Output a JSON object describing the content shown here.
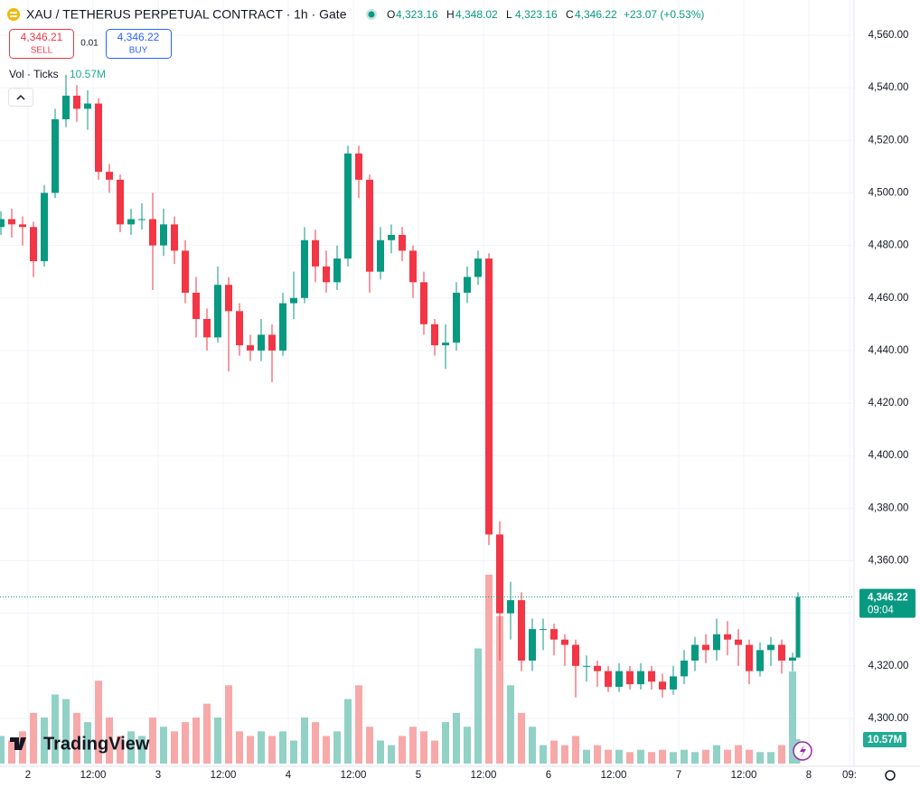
{
  "header": {
    "symbol": "XAU / TETHERUS PERPETUAL CONTRACT · 1h · Gate",
    "ohlc": [
      {
        "key": "O",
        "value": "4,323.16"
      },
      {
        "key": "H",
        "value": "4,348.02"
      },
      {
        "key": "L",
        "value": "4,323.16"
      },
      {
        "key": "C",
        "value": "4,346.22"
      }
    ],
    "change": "+23.07 (+0.53%)",
    "sell_price": "4,346.21",
    "sell_label": "SELL",
    "spread": "0.01",
    "buy_price": "4,346.22",
    "buy_label": "BUY",
    "volume_label": "Vol · Ticks",
    "volume_value": "10.57M"
  },
  "watermark": "TradingView",
  "price_tag": {
    "price": "4,346.22",
    "countdown": "09:04"
  },
  "volume_tag": "10.57M",
  "chart_data": {
    "type": "candlestick",
    "up_color": "#089981",
    "down_color": "#f23645",
    "volume_up_color": "#92d1c6",
    "volume_down_color": "#f7a9a9",
    "x": [
      0,
      2,
      4,
      6,
      8,
      10,
      12,
      14,
      16,
      18,
      20,
      22,
      24,
      26,
      28,
      30,
      32,
      34,
      36,
      38,
      40,
      42,
      44,
      46,
      48,
      50,
      52,
      54,
      56,
      58,
      60,
      62,
      64,
      66,
      68,
      70,
      72,
      74,
      76,
      78,
      80,
      82,
      84,
      86,
      88,
      90,
      92,
      94,
      96,
      98,
      100,
      102,
      104,
      106,
      108,
      110,
      112,
      114,
      116,
      118,
      120,
      122,
      124,
      126,
      128,
      130,
      132,
      134,
      136,
      138,
      140,
      142,
      144,
      146,
      147
    ],
    "open": [
      4487,
      4490,
      4488,
      4487,
      4474,
      4500,
      4528,
      4537,
      4532,
      4534,
      4508,
      4505,
      4488,
      4490,
      4490,
      4480,
      4488,
      4478,
      4462,
      4452,
      4445,
      4465,
      4455,
      4442,
      4440,
      4446,
      4440,
      4458,
      4460,
      4482,
      4472,
      4466,
      4475,
      4515,
      4505,
      4470,
      4482,
      4484,
      4478,
      4466,
      4450,
      4442,
      4443,
      4462,
      4468,
      4475,
      4370,
      4340,
      4345,
      4322,
      4334,
      4334,
      4330,
      4328,
      4320,
      4320,
      4318,
      4312,
      4318,
      4313,
      4318,
      4314,
      4311,
      4316,
      4322,
      4328,
      4326,
      4332,
      4330,
      4328,
      4318,
      4326,
      4328,
      4322,
      4323.16
    ],
    "high": [
      4493,
      4494,
      4491,
      4489,
      4503,
      4532,
      4545,
      4541,
      4539,
      4536,
      4511,
      4507,
      4494,
      4496,
      4500,
      4494,
      4491,
      4482,
      4468,
      4456,
      4472,
      4468,
      4458,
      4446,
      4452,
      4450,
      4462,
      4470,
      4487,
      4486,
      4478,
      4480,
      4518,
      4518,
      4507,
      4487,
      4488,
      4487,
      4480,
      4470,
      4452,
      4450,
      4466,
      4472,
      4478,
      4477,
      4375,
      4352,
      4348,
      4338,
      4338,
      4336,
      4332,
      4330,
      4324,
      4322,
      4320,
      4321,
      4320,
      4321,
      4320,
      4317,
      4320,
      4326,
      4331,
      4332,
      4338,
      4337,
      4334,
      4330,
      4329,
      4331,
      4330,
      4325,
      4348.02
    ],
    "low": [
      4484,
      4483,
      4480,
      4468,
      4472,
      4498,
      4525,
      4527,
      4524,
      4505,
      4500,
      4485,
      4484,
      4486,
      4463,
      4476,
      4473,
      4458,
      4445,
      4440,
      4443,
      4432,
      4438,
      4436,
      4436,
      4428,
      4438,
      4452,
      4458,
      4466,
      4462,
      4463,
      4472,
      4498,
      4462,
      4467,
      4477,
      4474,
      4460,
      4446,
      4438,
      4433,
      4440,
      4458,
      4465,
      4366,
      4322,
      4330,
      4318,
      4318,
      4326,
      4324,
      4320,
      4308,
      4314,
      4312,
      4310,
      4310,
      4311,
      4311,
      4311,
      4308,
      4309,
      4313,
      4318,
      4321,
      4322,
      4324,
      4320,
      4313,
      4316,
      4320,
      4317,
      4318,
      4323.16
    ],
    "close": [
      4490,
      4488,
      4487,
      4474,
      4500,
      4528,
      4537,
      4532,
      4534,
      4508,
      4505,
      4488,
      4490,
      4490,
      4480,
      4488,
      4478,
      4462,
      4452,
      4445,
      4465,
      4455,
      4442,
      4440,
      4446,
      4440,
      4458,
      4460,
      4482,
      4472,
      4466,
      4475,
      4515,
      4505,
      4470,
      4482,
      4484,
      4478,
      4466,
      4450,
      4442,
      4443,
      4462,
      4468,
      4475,
      4370,
      4340,
      4345,
      4322,
      4334,
      4334,
      4330,
      4328,
      4320,
      4320,
      4318,
      4312,
      4318,
      4313,
      4318,
      4314,
      4311,
      4316,
      4322,
      4328,
      4326,
      4332,
      4330,
      4328,
      4318,
      4326,
      4328,
      4322,
      4323.16,
      4346.22
    ],
    "volume": [
      12,
      10,
      14,
      22,
      20,
      30,
      28,
      22,
      18,
      36,
      20,
      12,
      14,
      12,
      20,
      16,
      14,
      18,
      20,
      26,
      20,
      34,
      14,
      12,
      14,
      12,
      14,
      10,
      20,
      18,
      12,
      14,
      28,
      34,
      16,
      10,
      8,
      12,
      16,
      14,
      10,
      18,
      22,
      16,
      50,
      82,
      64,
      34,
      22,
      16,
      8,
      10,
      8,
      12,
      6,
      8,
      6,
      6,
      5,
      6,
      5,
      6,
      5,
      6,
      5,
      6,
      8,
      6,
      8,
      6,
      5,
      5,
      8,
      40,
      10.57
    ],
    "xlim": [
      0,
      157
    ],
    "ylim": [
      4282.8,
      4573.4
    ],
    "vol_ylim": [
      0,
      100
    ],
    "yticks": [
      {
        "value": 4300,
        "label": "4,300.00"
      },
      {
        "value": 4320,
        "label": "4,320.00"
      },
      {
        "value": 4340,
        "label": "4,340.00"
      },
      {
        "value": 4360,
        "label": "4,360.00"
      },
      {
        "value": 4380,
        "label": "4,380.00"
      },
      {
        "value": 4400,
        "label": "4,400.00"
      },
      {
        "value": 4420,
        "label": "4,420.00"
      },
      {
        "value": 4440,
        "label": "4,440.00"
      },
      {
        "value": 4460,
        "label": "4,460.00"
      },
      {
        "value": 4480,
        "label": "4,480.00"
      },
      {
        "value": 4500,
        "label": "4,500.00"
      },
      {
        "value": 4520,
        "label": "4,520.00"
      },
      {
        "value": 4540,
        "label": "4,540.00"
      },
      {
        "value": 4560,
        "label": "4,560.00"
      }
    ],
    "xticks": [
      {
        "value": 5,
        "label": "2"
      },
      {
        "value": 17,
        "label": "12:00"
      },
      {
        "value": 29,
        "label": "3"
      },
      {
        "value": 41,
        "label": "12:00"
      },
      {
        "value": 53,
        "label": "4"
      },
      {
        "value": 65,
        "label": "12:00"
      },
      {
        "value": 77,
        "label": "5"
      },
      {
        "value": 89,
        "label": "12:00"
      },
      {
        "value": 101,
        "label": "6"
      },
      {
        "value": 113,
        "label": "12:00"
      },
      {
        "value": 125,
        "label": "7"
      },
      {
        "value": 137,
        "label": "12:00"
      },
      {
        "value": 149,
        "label": "8"
      },
      {
        "value": 156.5,
        "label": "09:"
      }
    ],
    "grid": true
  }
}
